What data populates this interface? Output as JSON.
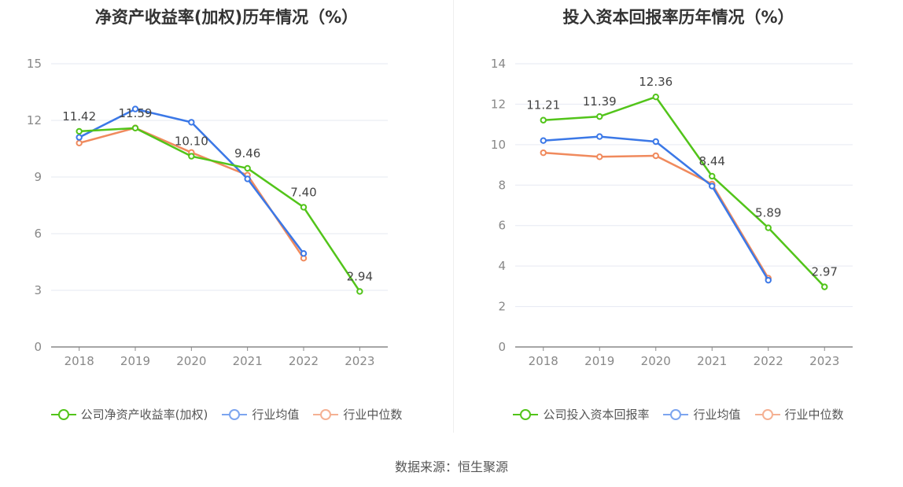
{
  "source": "数据来源：恒生聚源",
  "chart_data": [
    {
      "type": "line",
      "title": "净资产收益率(加权)历年情况（%）",
      "categories": [
        "2018",
        "2019",
        "2020",
        "2021",
        "2022",
        "2023"
      ],
      "ylim": [
        0,
        15
      ],
      "yticks": [
        0,
        3,
        6,
        9,
        12,
        15
      ],
      "grid": true,
      "legend_position": "bottom",
      "series": [
        {
          "name": "公司净资产收益率(加权)",
          "color": "#52c41a",
          "labeled": true,
          "values": [
            11.42,
            11.59,
            10.1,
            9.46,
            7.4,
            2.94
          ],
          "labels": [
            "11.42",
            "11.59",
            "10.10",
            "9.46",
            "7.40",
            "2.94"
          ]
        },
        {
          "name": "行业均值",
          "color": "#3b78e7",
          "values": [
            11.1,
            12.6,
            11.9,
            8.9,
            4.95,
            null
          ]
        },
        {
          "name": "行业中位数",
          "color": "#f08a5d",
          "values": [
            10.8,
            11.6,
            10.3,
            9.1,
            4.7,
            null
          ]
        }
      ]
    },
    {
      "type": "line",
      "title": "投入资本回报率历年情况（%）",
      "categories": [
        "2018",
        "2019",
        "2020",
        "2021",
        "2022",
        "2023"
      ],
      "ylim": [
        0,
        14
      ],
      "yticks": [
        0,
        2,
        4,
        6,
        8,
        10,
        12,
        14
      ],
      "grid": true,
      "legend_position": "bottom",
      "series": [
        {
          "name": "公司投入资本回报率",
          "color": "#52c41a",
          "labeled": true,
          "values": [
            11.21,
            11.39,
            12.36,
            8.44,
            5.89,
            2.97
          ],
          "labels": [
            "11.21",
            "11.39",
            "12.36",
            "8.44",
            "5.89",
            "2.97"
          ]
        },
        {
          "name": "行业均值",
          "color": "#3b78e7",
          "values": [
            10.2,
            10.4,
            10.15,
            7.95,
            3.3,
            null
          ]
        },
        {
          "name": "行业中位数",
          "color": "#f08a5d",
          "values": [
            9.6,
            9.4,
            9.45,
            8.05,
            3.4,
            null
          ]
        }
      ]
    }
  ]
}
